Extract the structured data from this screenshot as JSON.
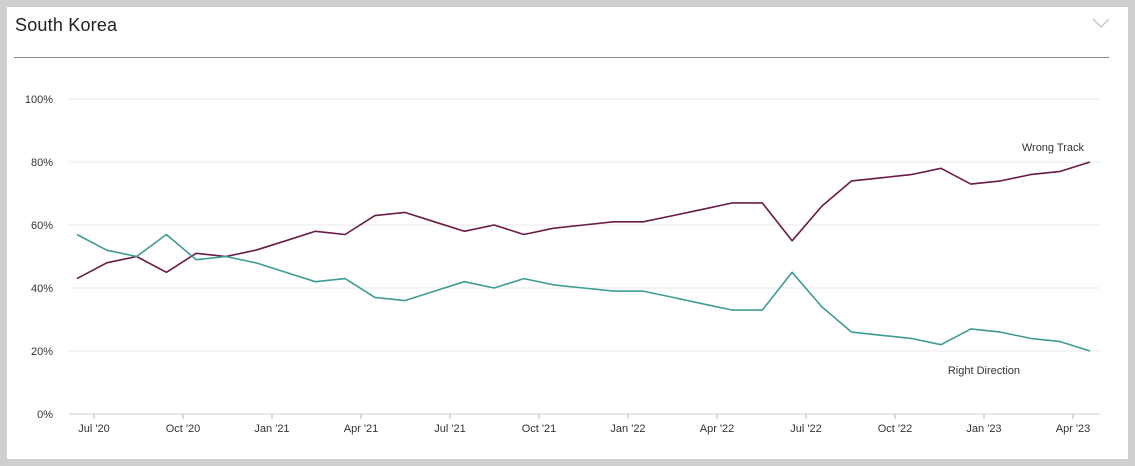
{
  "title": "South Korea",
  "icons": {
    "collapse": "chevron-down-icon"
  },
  "colors": {
    "wrong_track": "#6b1a45",
    "right_direction": "#3f9c95",
    "grid": "#e8e8e8"
  },
  "chart_data": {
    "type": "line",
    "title": "South Korea",
    "xlabel": "",
    "ylabel": "",
    "ylim": [
      0,
      100
    ],
    "y_ticks": [
      "0%",
      "20%",
      "40%",
      "60%",
      "80%",
      "100%"
    ],
    "x_ticks": [
      "Jul '20",
      "Oct '20",
      "Jan '21",
      "Apr '21",
      "Jul '21",
      "Oct '21",
      "Jan '22",
      "Apr '22",
      "Jul '22",
      "Oct '22",
      "Jan '23",
      "Apr '23"
    ],
    "grid": true,
    "x": [
      "Jun '20",
      "Jul '20",
      "Aug '20",
      "Sep '20",
      "Oct '20",
      "Nov '20",
      "Dec '20",
      "Jan '21",
      "Feb '21",
      "Mar '21",
      "Apr '21",
      "May '21",
      "Jun '21",
      "Jul '21",
      "Aug '21",
      "Sep '21",
      "Oct '21",
      "Nov '21",
      "Dec '21",
      "Jan '22",
      "Feb '22",
      "Mar '22",
      "Apr '22",
      "May '22",
      "Jun '22",
      "Jul '22",
      "Aug '22",
      "Sep '22",
      "Oct '22",
      "Nov '22",
      "Dec '22",
      "Jan '23",
      "Feb '23",
      "Mar '23",
      "Apr '23"
    ],
    "series": [
      {
        "name": "Wrong Track",
        "values": [
          43,
          48,
          50,
          45,
          51,
          50,
          52,
          55,
          58,
          57,
          63,
          64,
          61,
          58,
          60,
          57,
          59,
          60,
          61,
          61,
          63,
          65,
          67,
          67,
          55,
          66,
          74,
          75,
          76,
          78,
          73,
          74,
          76,
          77,
          80
        ]
      },
      {
        "name": "Right Direction",
        "values": [
          57,
          52,
          50,
          57,
          49,
          50,
          48,
          45,
          42,
          43,
          37,
          36,
          39,
          42,
          40,
          43,
          41,
          40,
          39,
          39,
          37,
          35,
          33,
          33,
          45,
          34,
          26,
          25,
          24,
          22,
          27,
          26,
          24,
          23,
          20
        ]
      }
    ]
  }
}
